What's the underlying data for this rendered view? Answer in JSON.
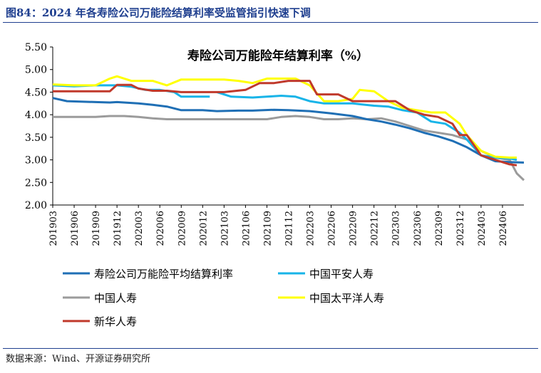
{
  "header": {
    "figure_title": "图84：2024 年各寿险公司万能险结算利率受监管指引快速下调"
  },
  "footer": {
    "source": "数据来源：Wind、开源证券研究所"
  },
  "colors": {
    "accent": "#1f3f8f"
  },
  "chart_data": {
    "type": "line",
    "title": "寿险公司万能险年结算利率（%）",
    "xlabel": "",
    "ylabel": "",
    "ylim": [
      2.0,
      5.5
    ],
    "yticks": [
      "2.00",
      "2.50",
      "3.00",
      "3.50",
      "4.00",
      "4.50",
      "5.00",
      "5.50"
    ],
    "grid": false,
    "legend_position": "bottom",
    "x_start": "2019-03",
    "x_end": "2024-09",
    "x_ticks": [
      "201903",
      "201906",
      "201909",
      "201912",
      "202003",
      "202006",
      "202009",
      "202012",
      "202103",
      "202106",
      "202109",
      "202112",
      "202203",
      "202206",
      "202209",
      "202212",
      "202303",
      "202306",
      "202309",
      "202312",
      "202403",
      "202406"
    ],
    "series": [
      {
        "name": "寿险公司万能险平均结算利率",
        "color": "#1f6fb5",
        "points": [
          [
            "2019-03",
            4.37
          ],
          [
            "2019-05",
            4.3
          ],
          [
            "2019-09",
            4.28
          ],
          [
            "2019-11",
            4.27
          ],
          [
            "2019-12",
            4.28
          ],
          [
            "2020-03",
            4.25
          ],
          [
            "2020-05",
            4.22
          ],
          [
            "2020-07",
            4.18
          ],
          [
            "2020-09",
            4.1
          ],
          [
            "2020-12",
            4.1
          ],
          [
            "2021-02",
            4.08
          ],
          [
            "2021-05",
            4.09
          ],
          [
            "2021-07",
            4.09
          ],
          [
            "2021-10",
            4.11
          ],
          [
            "2021-12",
            4.1
          ],
          [
            "2022-03",
            4.08
          ],
          [
            "2022-06",
            4.03
          ],
          [
            "2022-09",
            3.97
          ],
          [
            "2022-11",
            3.9
          ],
          [
            "2023-01",
            3.85
          ],
          [
            "2023-03",
            3.78
          ],
          [
            "2023-05",
            3.7
          ],
          [
            "2023-07",
            3.6
          ],
          [
            "2023-09",
            3.52
          ],
          [
            "2023-11",
            3.42
          ],
          [
            "2024-01",
            3.28
          ],
          [
            "2024-03",
            3.1
          ],
          [
            "2024-05",
            2.97
          ],
          [
            "2024-07",
            2.95
          ],
          [
            "2024-09",
            2.94
          ]
        ]
      },
      {
        "name": "中国平安人寿",
        "color": "#18b4e8",
        "segments": [
          [
            [
              "2019-03",
              4.65
            ],
            [
              "2019-06",
              4.63
            ],
            [
              "2019-09",
              4.65
            ],
            [
              "2019-12",
              4.65
            ],
            [
              "2020-02",
              4.62
            ],
            [
              "2020-04",
              4.55
            ],
            [
              "2020-06",
              4.55
            ],
            [
              "2020-08",
              4.5
            ],
            [
              "2020-09",
              4.4
            ],
            [
              "2020-11",
              4.4
            ],
            [
              "2021-01",
              4.4
            ]
          ],
          [
            [
              "2021-02",
              4.5
            ],
            [
              "2021-04",
              4.4
            ],
            [
              "2021-07",
              4.38
            ],
            [
              "2021-09",
              4.4
            ],
            [
              "2021-11",
              4.42
            ],
            [
              "2022-01",
              4.4
            ],
            [
              "2022-03",
              4.3
            ],
            [
              "2022-05",
              4.25
            ],
            [
              "2022-09",
              4.25
            ],
            [
              "2022-12",
              4.2
            ],
            [
              "2023-02",
              4.18
            ],
            [
              "2023-04",
              4.1
            ],
            [
              "2023-06",
              4.05
            ],
            [
              "2023-08",
              3.85
            ],
            [
              "2023-10",
              3.8
            ],
            [
              "2023-12",
              3.6
            ],
            [
              "2024-01",
              3.45
            ],
            [
              "2024-03",
              3.1
            ],
            [
              "2024-05",
              3.05
            ],
            [
              "2024-07",
              3.03
            ],
            [
              "2024-08",
              3.0
            ]
          ]
        ]
      },
      {
        "name": "中国人寿",
        "color": "#9b9b9b",
        "points": [
          [
            "2019-03",
            3.95
          ],
          [
            "2019-06",
            3.95
          ],
          [
            "2019-09",
            3.95
          ],
          [
            "2019-11",
            3.97
          ],
          [
            "2020-01",
            3.97
          ],
          [
            "2020-03",
            3.95
          ],
          [
            "2020-05",
            3.92
          ],
          [
            "2020-07",
            3.9
          ],
          [
            "2020-09",
            3.9
          ],
          [
            "2020-12",
            3.9
          ],
          [
            "2021-03",
            3.9
          ],
          [
            "2021-06",
            3.9
          ],
          [
            "2021-09",
            3.9
          ],
          [
            "2021-11",
            3.95
          ],
          [
            "2022-01",
            3.97
          ],
          [
            "2022-03",
            3.95
          ],
          [
            "2022-05",
            3.9
          ],
          [
            "2022-07",
            3.9
          ],
          [
            "2022-09",
            3.92
          ],
          [
            "2022-11",
            3.9
          ],
          [
            "2023-01",
            3.92
          ],
          [
            "2023-03",
            3.85
          ],
          [
            "2023-05",
            3.75
          ],
          [
            "2023-07",
            3.65
          ],
          [
            "2023-09",
            3.6
          ],
          [
            "2023-11",
            3.55
          ],
          [
            "2024-01",
            3.45
          ],
          [
            "2024-03",
            3.2
          ],
          [
            "2024-05",
            3.05
          ],
          [
            "2024-07",
            3.0
          ],
          [
            "2024-08",
            2.7
          ],
          [
            "2024-09",
            2.55
          ]
        ]
      },
      {
        "name": "中国太平洋人寿",
        "color": "#ffff00",
        "points": [
          [
            "2019-03",
            4.67
          ],
          [
            "2019-06",
            4.65
          ],
          [
            "2019-09",
            4.65
          ],
          [
            "2019-11",
            4.8
          ],
          [
            "2019-12",
            4.85
          ],
          [
            "2020-02",
            4.75
          ],
          [
            "2020-05",
            4.75
          ],
          [
            "2020-07",
            4.65
          ],
          [
            "2020-09",
            4.78
          ],
          [
            "2020-12",
            4.78
          ],
          [
            "2021-03",
            4.78
          ],
          [
            "2021-05",
            4.75
          ],
          [
            "2021-07",
            4.7
          ],
          [
            "2021-09",
            4.8
          ],
          [
            "2021-11",
            4.8
          ],
          [
            "2022-01",
            4.8
          ],
          [
            "2022-03",
            4.65
          ],
          [
            "2022-05",
            4.3
          ],
          [
            "2022-07",
            4.3
          ],
          [
            "2022-09",
            4.35
          ],
          [
            "2022-10",
            4.55
          ],
          [
            "2022-12",
            4.52
          ],
          [
            "2023-02",
            4.3
          ],
          [
            "2023-04",
            4.15
          ],
          [
            "2023-06",
            4.1
          ],
          [
            "2023-08",
            4.05
          ],
          [
            "2023-10",
            4.05
          ],
          [
            "2023-12",
            3.8
          ],
          [
            "2024-01",
            3.55
          ],
          [
            "2024-03",
            3.2
          ],
          [
            "2024-05",
            3.07
          ],
          [
            "2024-07",
            3.05
          ],
          [
            "2024-08",
            3.05
          ]
        ]
      },
      {
        "name": "新华人寿",
        "color": "#c0392b",
        "points": [
          [
            "2019-03",
            4.52
          ],
          [
            "2019-06",
            4.52
          ],
          [
            "2019-09",
            4.52
          ],
          [
            "2019-11",
            4.52
          ],
          [
            "2019-12",
            4.66
          ],
          [
            "2020-02",
            4.66
          ],
          [
            "2020-03",
            4.58
          ],
          [
            "2020-05",
            4.53
          ],
          [
            "2020-07",
            4.53
          ],
          [
            "2020-09",
            4.5
          ],
          [
            "2020-12",
            4.5
          ],
          [
            "2021-03",
            4.5
          ],
          [
            "2021-06",
            4.55
          ],
          [
            "2021-08",
            4.7
          ],
          [
            "2021-10",
            4.7
          ],
          [
            "2021-12",
            4.75
          ],
          [
            "2022-03",
            4.75
          ],
          [
            "2022-04",
            4.45
          ],
          [
            "2022-07",
            4.45
          ],
          [
            "2022-09",
            4.3
          ],
          [
            "2022-11",
            4.3
          ],
          [
            "2023-01",
            4.3
          ],
          [
            "2023-03",
            4.3
          ],
          [
            "2023-05",
            4.1
          ],
          [
            "2023-07",
            4.0
          ],
          [
            "2023-09",
            3.95
          ],
          [
            "2023-11",
            3.8
          ],
          [
            "2023-12",
            3.55
          ],
          [
            "2024-01",
            3.55
          ],
          [
            "2024-03",
            3.1
          ],
          [
            "2024-05",
            3.0
          ],
          [
            "2024-07",
            2.9
          ],
          [
            "2024-08",
            2.88
          ]
        ]
      }
    ]
  }
}
